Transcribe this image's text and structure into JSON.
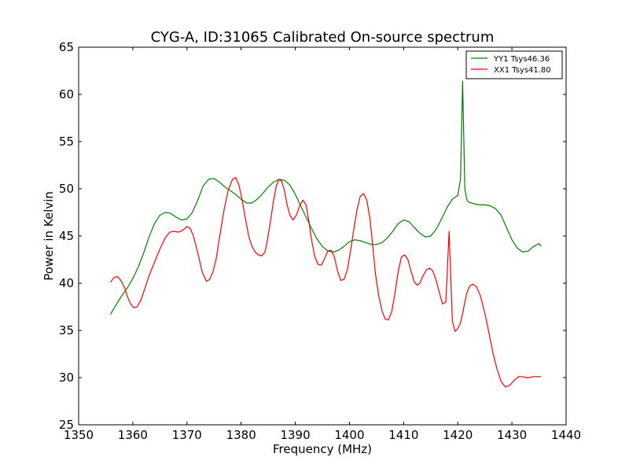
{
  "chart_data": {
    "type": "line",
    "title": "CYG-A, ID:31065 Calibrated On-source spectrum",
    "xlabel": "Frequency (MHz)",
    "ylabel": "Power in Kelvin",
    "xlim": [
      1350,
      1440
    ],
    "ylim": [
      25,
      65
    ],
    "xticks": [
      1350,
      1360,
      1370,
      1380,
      1390,
      1400,
      1410,
      1420,
      1430,
      1440
    ],
    "yticks": [
      25,
      30,
      35,
      40,
      45,
      50,
      55,
      60,
      65
    ],
    "grid": false,
    "legend_position": "top-right",
    "series": [
      {
        "name": "YY1 Tsys46.36",
        "color": "#008000",
        "x": [
          1355.9,
          1357.0,
          1358.0,
          1359.0,
          1360.0,
          1361.0,
          1362.0,
          1363.0,
          1364.0,
          1365.0,
          1366.0,
          1367.0,
          1368.0,
          1369.0,
          1370.0,
          1371.0,
          1372.0,
          1373.0,
          1374.0,
          1375.0,
          1376.0,
          1377.0,
          1378.0,
          1379.0,
          1380.0,
          1381.0,
          1382.0,
          1383.0,
          1384.0,
          1385.0,
          1386.0,
          1387.0,
          1388.0,
          1389.0,
          1390.0,
          1391.0,
          1392.0,
          1393.0,
          1394.0,
          1395.0,
          1396.0,
          1397.0,
          1398.0,
          1399.0,
          1400.0,
          1401.0,
          1402.0,
          1403.0,
          1404.0,
          1405.0,
          1406.0,
          1407.0,
          1408.0,
          1409.0,
          1410.0,
          1411.0,
          1412.0,
          1413.0,
          1414.0,
          1415.0,
          1416.0,
          1417.0,
          1418.0,
          1419.0,
          1420.0,
          1420.5,
          1420.9,
          1421.3,
          1421.7,
          1422.0,
          1423.0,
          1424.0,
          1425.0,
          1426.0,
          1427.0,
          1428.0,
          1429.0,
          1430.0,
          1431.0,
          1432.0,
          1433.0,
          1434.0,
          1435.0,
          1435.4
        ],
        "y": [
          36.7,
          37.8,
          38.7,
          39.5,
          40.5,
          41.7,
          43.2,
          44.9,
          46.3,
          47.2,
          47.5,
          47.4,
          47.0,
          46.7,
          46.8,
          47.5,
          48.8,
          50.3,
          51.0,
          51.1,
          50.7,
          50.2,
          49.8,
          49.4,
          48.9,
          48.5,
          48.5,
          48.9,
          49.5,
          50.2,
          50.7,
          51.0,
          50.9,
          50.4,
          49.4,
          48.2,
          47.0,
          45.8,
          44.7,
          43.9,
          43.4,
          43.3,
          43.5,
          43.9,
          44.4,
          44.6,
          44.5,
          44.3,
          44.1,
          44.1,
          44.3,
          44.8,
          45.5,
          46.3,
          46.7,
          46.5,
          45.9,
          45.3,
          44.9,
          45.0,
          45.7,
          46.8,
          48.0,
          48.9,
          49.3,
          51.0,
          61.4,
          50.0,
          48.8,
          48.6,
          48.4,
          48.3,
          48.3,
          48.2,
          47.9,
          47.2,
          45.9,
          44.6,
          43.7,
          43.3,
          43.4,
          43.9,
          44.2,
          43.9
        ]
      },
      {
        "name": "XX1 Tsys41.80",
        "color": "#ff0000",
        "x": [
          1355.9,
          1356.5,
          1357.2,
          1357.8,
          1358.5,
          1359.0,
          1359.6,
          1360.2,
          1360.8,
          1361.5,
          1362.2,
          1363.0,
          1364.0,
          1365.0,
          1366.0,
          1366.8,
          1367.6,
          1368.4,
          1369.2,
          1370.0,
          1370.6,
          1371.2,
          1372.0,
          1372.8,
          1373.6,
          1374.2,
          1374.8,
          1375.4,
          1376.0,
          1376.8,
          1377.6,
          1378.4,
          1379.0,
          1379.6,
          1380.2,
          1380.8,
          1381.4,
          1382.0,
          1382.6,
          1383.2,
          1383.8,
          1384.4,
          1384.8,
          1385.4,
          1386.0,
          1386.5,
          1387.0,
          1387.5,
          1388.0,
          1388.5,
          1389.0,
          1389.6,
          1390.2,
          1390.8,
          1391.4,
          1392.0,
          1392.5,
          1393.0,
          1393.6,
          1394.2,
          1394.8,
          1395.4,
          1396.0,
          1396.6,
          1397.2,
          1397.8,
          1398.4,
          1399.0,
          1399.6,
          1400.2,
          1400.8,
          1401.4,
          1402.0,
          1402.6,
          1403.2,
          1403.8,
          1404.3,
          1404.8,
          1405.4,
          1406.0,
          1406.6,
          1407.2,
          1407.8,
          1408.4,
          1409.0,
          1409.6,
          1410.2,
          1410.8,
          1411.4,
          1412.0,
          1412.5,
          1413.0,
          1413.6,
          1414.2,
          1414.8,
          1415.4,
          1416.0,
          1416.6,
          1417.2,
          1417.8,
          1418.4,
          1419.0,
          1419.5,
          1420.0,
          1420.5,
          1420.9,
          1421.3,
          1421.7,
          1422.2,
          1422.8,
          1423.5,
          1424.2,
          1425.0,
          1425.8,
          1426.5,
          1427.2,
          1428.0,
          1428.8,
          1429.6,
          1430.4,
          1431.2,
          1432.0,
          1432.6,
          1433.2,
          1433.8,
          1434.4,
          1435.0,
          1435.4
        ],
        "y": [
          40.1,
          40.6,
          40.7,
          40.3,
          39.5,
          38.6,
          37.8,
          37.4,
          37.5,
          38.2,
          39.4,
          40.8,
          42.2,
          43.6,
          44.8,
          45.4,
          45.5,
          45.4,
          45.6,
          46.0,
          45.8,
          45.0,
          43.2,
          41.2,
          40.2,
          40.4,
          41.2,
          42.6,
          44.8,
          47.6,
          49.8,
          51.0,
          51.2,
          50.4,
          48.8,
          46.8,
          45.0,
          43.9,
          43.3,
          43.0,
          42.9,
          43.3,
          44.4,
          46.5,
          48.8,
          50.3,
          51.0,
          50.8,
          49.8,
          48.3,
          47.2,
          46.7,
          47.2,
          48.2,
          48.8,
          48.3,
          46.6,
          44.6,
          42.8,
          42.0,
          41.9,
          42.6,
          43.4,
          43.5,
          42.8,
          41.3,
          40.3,
          40.4,
          41.4,
          43.4,
          45.7,
          47.8,
          49.2,
          49.5,
          48.8,
          46.8,
          43.9,
          41.0,
          38.7,
          37.1,
          36.2,
          36.1,
          37.0,
          38.9,
          41.2,
          42.8,
          43.0,
          42.5,
          41.2,
          40.1,
          39.8,
          40.0,
          40.8,
          41.4,
          41.6,
          41.3,
          40.3,
          39.0,
          37.8,
          38.0,
          45.5,
          36.0,
          34.9,
          35.2,
          35.8,
          36.8,
          38.0,
          39.0,
          39.7,
          39.9,
          39.6,
          38.6,
          36.8,
          34.6,
          32.6,
          31.0,
          29.6,
          29.0,
          29.2,
          29.7,
          30.1,
          30.1,
          30.0,
          30.0,
          30.1,
          30.1,
          30.1,
          30.1
        ]
      }
    ]
  }
}
